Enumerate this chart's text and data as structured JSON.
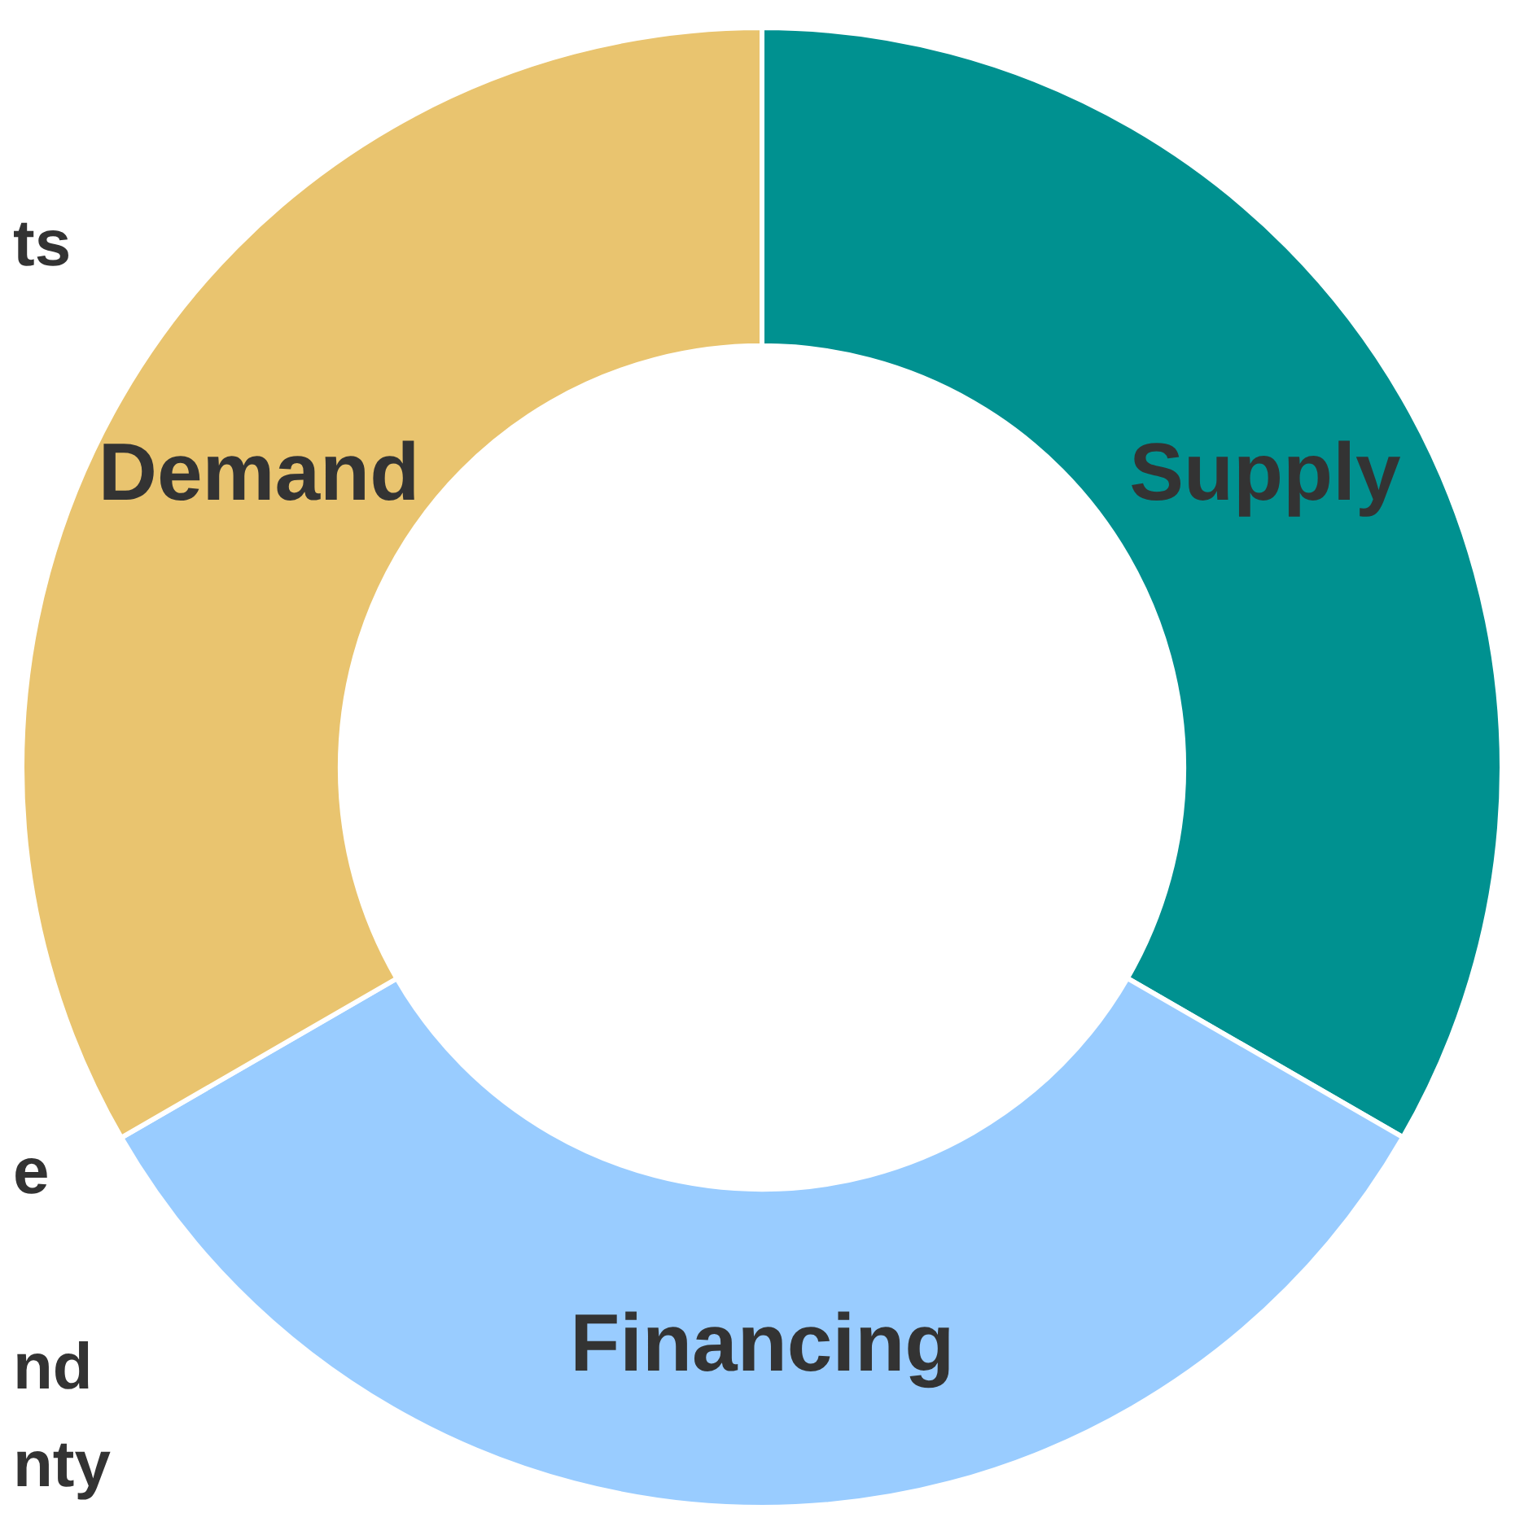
{
  "chart_data": {
    "type": "donut",
    "categories": [
      "Supply",
      "Financing",
      "Demand"
    ],
    "values": [
      33.33,
      33.33,
      33.34
    ],
    "colors": [
      "#009190",
      "#99ccff",
      "#e9c46f"
    ],
    "annotations": [
      "ts",
      "e",
      "nd",
      "nty"
    ],
    "legend": false
  }
}
